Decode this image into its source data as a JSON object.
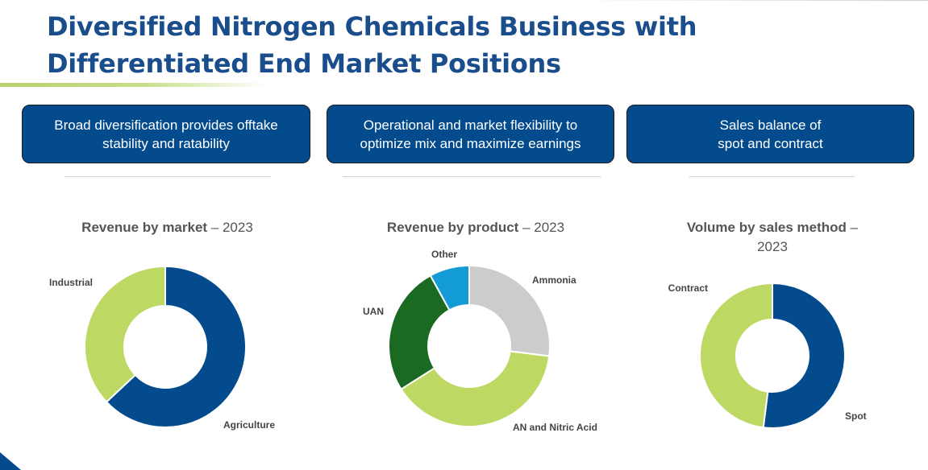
{
  "title_lines": [
    "Diversified Nitrogen Chemicals Business with",
    "Differentiated End Market Positions"
  ],
  "boxes": [
    {
      "lines": [
        "Broad diversification provides offtake",
        "stability and ratability"
      ]
    },
    {
      "lines": [
        "Operational and market flexibility to",
        "optimize mix and maximize earnings"
      ]
    },
    {
      "lines": [
        "Sales balance of",
        "spot and contract"
      ]
    }
  ],
  "colors": {
    "title": "#1a4d8c",
    "box_fill": "#034b8c",
    "dark_blue": "#034b8c",
    "light_green": "#bdd964",
    "dark_green": "#1b6a21",
    "gray": "#cccccc",
    "cyan": "#139bd6"
  },
  "chart_data": [
    {
      "type": "pie",
      "title_bold": "Revenue by market",
      "title_rest": " – 2023",
      "title_extra": "",
      "slices": [
        {
          "label": "Agriculture",
          "value": 63,
          "color": "#034b8c"
        },
        {
          "label": "Industrial",
          "value": 37,
          "color": "#bdd964"
        }
      ]
    },
    {
      "type": "pie",
      "title_bold": "Revenue by product",
      "title_rest": " – 2023",
      "title_extra": "",
      "slices": [
        {
          "label": "Ammonia",
          "value": 27,
          "color": "#cccccc"
        },
        {
          "label": "AN and Nitric Acid",
          "value": 39,
          "color": "#bdd964"
        },
        {
          "label": "UAN",
          "value": 26,
          "color": "#1b6a21"
        },
        {
          "label": "Other",
          "value": 8,
          "color": "#139bd6"
        }
      ]
    },
    {
      "type": "pie",
      "title_bold": "Volume by sales method",
      "title_rest": " –",
      "title_extra": "2023",
      "slices": [
        {
          "label": "Spot",
          "value": 52,
          "color": "#034b8c"
        },
        {
          "label": "Contract",
          "value": 48,
          "color": "#bdd964"
        }
      ]
    }
  ]
}
